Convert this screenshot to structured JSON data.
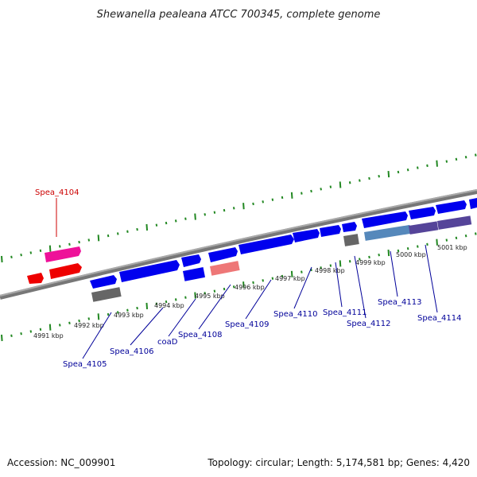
{
  "title": "Shewanella pealeana ATCC 700345, complete genome",
  "footer": {
    "accession": "Accession: NC_009901",
    "summary": "Topology: circular; Length: 5,174,581 bp; Genes: 4,420"
  },
  "colors": {
    "cds_forward": "#0000ee",
    "cds_reverse_red": "#ee0000",
    "highlight_pink": "#ee1199",
    "light_red": "#ee7777",
    "gray": "#666666",
    "steel": "#5588bb",
    "purple": "#554499",
    "tick": "#228822",
    "label_blue": "#000099",
    "label_red": "#cc0000",
    "backbone": "#888888"
  },
  "ticks": [
    {
      "label": "4991 kbp"
    },
    {
      "label": "4992 kbp"
    },
    {
      "label": "4993 kbp"
    },
    {
      "label": "4994 kbp"
    },
    {
      "label": "4995 kbp"
    },
    {
      "label": "4996 kbp"
    },
    {
      "label": "4997 kbp"
    },
    {
      "label": "4998 kbp"
    },
    {
      "label": "4999 kbp"
    },
    {
      "label": "5000 kbp"
    },
    {
      "label": "5001 kbp"
    }
  ],
  "gene_labels": [
    {
      "text": "Spea_4104",
      "color": "label_red"
    },
    {
      "text": "Spea_4105",
      "color": "label_blue"
    },
    {
      "text": "Spea_4106",
      "color": "label_blue"
    },
    {
      "text": "coaD",
      "color": "label_blue"
    },
    {
      "text": "Spea_4108",
      "color": "label_blue"
    },
    {
      "text": "Spea_4109",
      "color": "label_blue"
    },
    {
      "text": "Spea_4110",
      "color": "label_blue"
    },
    {
      "text": "Spea_4111",
      "color": "label_blue"
    },
    {
      "text": "Spea_4112",
      "color": "label_blue"
    },
    {
      "text": "Spea_4113",
      "color": "label_blue"
    },
    {
      "text": "Spea_4114",
      "color": "label_blue"
    }
  ]
}
